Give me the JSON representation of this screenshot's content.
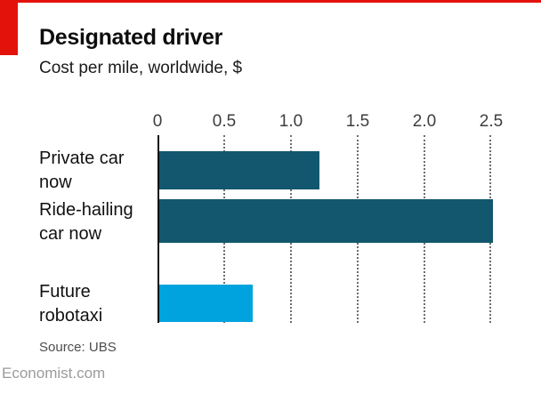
{
  "header": {
    "title": "Designated driver",
    "subtitle": "Cost per mile, worldwide, $"
  },
  "colors": {
    "accent_red": "#e3120b",
    "dark_teal": "#12576e",
    "light_blue": "#00a3dd",
    "gridline": "#6e6e6e"
  },
  "chart_data": {
    "type": "bar",
    "orientation": "horizontal",
    "title": "Designated driver",
    "subtitle": "Cost per mile, worldwide, $",
    "categories": [
      "Private car now",
      "Ride-hailing car now",
      "Future robotaxi"
    ],
    "category_lines": [
      [
        "Private car",
        "now"
      ],
      [
        "Ride-hailing",
        "car now"
      ],
      [
        "Future",
        "robotaxi"
      ]
    ],
    "values": [
      1.2,
      2.5,
      0.7
    ],
    "bar_colors": [
      "#12576e",
      "#12576e",
      "#00a3dd"
    ],
    "xlim": [
      0,
      2.5
    ],
    "x_ticks": [
      0,
      0.5,
      1.0,
      1.5,
      2.0,
      2.5
    ],
    "tick_labels": [
      "0",
      "0.5",
      "1.0",
      "1.5",
      "2.0",
      "2.5"
    ],
    "grid": "dotted-vertical",
    "legend": "none"
  },
  "footer": {
    "source": "Source: UBS",
    "site": "Economist.com"
  }
}
